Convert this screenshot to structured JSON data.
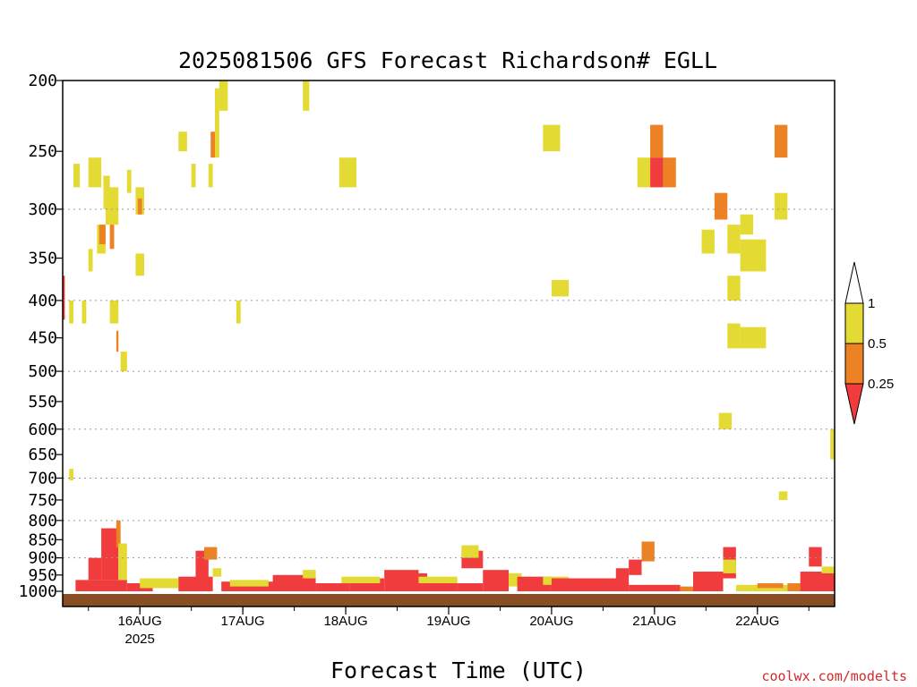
{
  "colors": {
    "lt_025": "#f03c3c",
    "025_05": "#ec8224",
    "05_1": "#e4da34",
    "ground": "#8a4e26",
    "grid": "#9a9a9a",
    "credit": "#d22a2a"
  },
  "chart_data": {
    "type": "heatmap",
    "title": "2025081506 GFS Forecast Richardson# EGLL",
    "xlabel": "Forecast Time (UTC)",
    "ylabel": "",
    "y_scale": "log",
    "y_reversed": true,
    "ylim": [
      1000,
      200
    ],
    "xlim": [
      6,
      186
    ],
    "y_ticks": [
      "200",
      "250",
      "300",
      "350",
      "400",
      "450",
      "500",
      "550",
      "600",
      "650",
      "700",
      "750",
      "800",
      "850",
      "900",
      "950",
      "1000"
    ],
    "y_gridlines": [
      300,
      400,
      500,
      600,
      700,
      800,
      900
    ],
    "x_ticks": [
      {
        "value": 24,
        "label": "16AUG",
        "label2": "2025"
      },
      {
        "value": 48,
        "label": "17AUG",
        "label2": ""
      },
      {
        "value": 72,
        "label": "18AUG",
        "label2": ""
      },
      {
        "value": 96,
        "label": "19AUG",
        "label2": ""
      },
      {
        "value": 120,
        "label": "20AUG",
        "label2": ""
      },
      {
        "value": 144,
        "label": "21AUG",
        "label2": ""
      },
      {
        "value": 168,
        "label": "22AUG",
        "label2": ""
      }
    ],
    "legend": {
      "placement": "right",
      "labels": [
        "1",
        "0.5",
        "0.25"
      ],
      "bins": [
        {
          "range": "0.5-1",
          "color": "#e4da34"
        },
        {
          "range": "0.25-0.5",
          "color": "#ec8224"
        },
        {
          "range": "<0.25",
          "color": "#f03c3c"
        }
      ]
    },
    "cells": [
      [
        7.5,
        8.5,
        680,
        705,
        "05_1"
      ],
      [
        7.5,
        8.5,
        400,
        430,
        "05_1"
      ],
      [
        10.5,
        11.5,
        400,
        430,
        "05_1"
      ],
      [
        12,
        13,
        340,
        365,
        "05_1"
      ],
      [
        8.5,
        10,
        260,
        280,
        "05_1"
      ],
      [
        12,
        15,
        255,
        280,
        "05_1"
      ],
      [
        14,
        16,
        315,
        345,
        "05_1"
      ],
      [
        14.5,
        16,
        315,
        335,
        "025_05"
      ],
      [
        15.5,
        17,
        270,
        300,
        "05_1"
      ],
      [
        16,
        19,
        280,
        315,
        "05_1"
      ],
      [
        17,
        18,
        315,
        340,
        "025_05"
      ],
      [
        17,
        19,
        400,
        430,
        "05_1"
      ],
      [
        18.5,
        19,
        440,
        470,
        "025_05"
      ],
      [
        19.5,
        21,
        470,
        500,
        "05_1"
      ],
      [
        21,
        22,
        265,
        285,
        "05_1"
      ],
      [
        23,
        25,
        280,
        305,
        "05_1"
      ],
      [
        23.5,
        24.5,
        290,
        305,
        "025_05"
      ],
      [
        23,
        25,
        345,
        370,
        "05_1"
      ],
      [
        33,
        35,
        235,
        250,
        "05_1"
      ],
      [
        36,
        37,
        260,
        280,
        "05_1"
      ],
      [
        40,
        41,
        260,
        280,
        "05_1"
      ],
      [
        40.5,
        41.5,
        235,
        255,
        "025_05"
      ],
      [
        41.5,
        42.5,
        205,
        255,
        "05_1"
      ],
      [
        42.5,
        44.5,
        200,
        220,
        "05_1"
      ],
      [
        46.5,
        47.5,
        400,
        430,
        "05_1"
      ],
      [
        62,
        63.5,
        200,
        220,
        "05_1"
      ],
      [
        70.5,
        74.5,
        255,
        280,
        "05_1"
      ],
      [
        118,
        122,
        230,
        250,
        "05_1"
      ],
      [
        120,
        124,
        375,
        395,
        "05_1"
      ],
      [
        140,
        143,
        255,
        280,
        "05_1"
      ],
      [
        143,
        146,
        230,
        255,
        "025_05"
      ],
      [
        143,
        146,
        255,
        280,
        "lt_025"
      ],
      [
        146,
        149,
        255,
        280,
        "025_05"
      ],
      [
        155,
        158,
        320,
        345,
        "05_1"
      ],
      [
        158,
        161,
        285,
        310,
        "025_05"
      ],
      [
        161,
        164,
        315,
        345,
        "05_1"
      ],
      [
        164,
        167,
        305,
        325,
        "05_1"
      ],
      [
        164,
        170,
        330,
        365,
        "05_1"
      ],
      [
        161,
        164,
        370,
        400,
        "05_1"
      ],
      [
        161,
        164,
        430,
        465,
        "05_1"
      ],
      [
        164,
        170,
        435,
        465,
        "05_1"
      ],
      [
        159,
        162,
        570,
        600,
        "05_1"
      ],
      [
        172,
        175,
        230,
        255,
        "025_05"
      ],
      [
        172,
        175,
        285,
        310,
        "05_1"
      ],
      [
        173,
        175,
        730,
        750,
        "05_1"
      ],
      [
        185,
        186,
        600,
        660,
        "05_1"
      ],
      [
        6,
        6.5,
        370,
        425,
        "lt_025"
      ],
      [
        9,
        21,
        965,
        1000,
        "lt_025"
      ],
      [
        12,
        15,
        900,
        965,
        "lt_025"
      ],
      [
        15,
        19,
        820,
        965,
        "lt_025"
      ],
      [
        18.5,
        19.5,
        800,
        870,
        "025_05"
      ],
      [
        19,
        21,
        860,
        965,
        "05_1"
      ],
      [
        21,
        27,
        975,
        1000,
        "lt_025"
      ],
      [
        24,
        33,
        960,
        990,
        "05_1"
      ],
      [
        33,
        41,
        955,
        1000,
        "lt_025"
      ],
      [
        37,
        40,
        880,
        960,
        "lt_025"
      ],
      [
        39,
        42,
        870,
        905,
        "025_05"
      ],
      [
        41,
        43,
        930,
        955,
        "05_1"
      ],
      [
        43,
        56,
        970,
        1000,
        "lt_025"
      ],
      [
        45,
        54,
        965,
        985,
        "05_1"
      ],
      [
        55,
        65,
        950,
        1000,
        "lt_025"
      ],
      [
        62,
        65,
        935,
        960,
        "05_1"
      ],
      [
        65,
        73,
        975,
        1000,
        "lt_025"
      ],
      [
        73,
        81,
        960,
        1000,
        "lt_025"
      ],
      [
        71,
        80,
        955,
        975,
        "05_1"
      ],
      [
        81,
        89,
        935,
        1000,
        "lt_025"
      ],
      [
        86,
        91,
        945,
        980,
        "lt_025"
      ],
      [
        89,
        98,
        960,
        1000,
        "lt_025"
      ],
      [
        89,
        98,
        955,
        975,
        "05_1"
      ],
      [
        99,
        104,
        880,
        930,
        "lt_025"
      ],
      [
        99,
        103,
        865,
        900,
        "05_1"
      ],
      [
        98,
        104,
        975,
        1000,
        "lt_025"
      ],
      [
        104,
        110,
        935,
        1000,
        "lt_025"
      ],
      [
        110,
        113,
        945,
        985,
        "05_1"
      ],
      [
        112,
        120,
        955,
        1000,
        "lt_025"
      ],
      [
        118,
        124,
        955,
        980,
        "05_1"
      ],
      [
        120,
        138,
        960,
        1000,
        "lt_025"
      ],
      [
        135,
        138,
        930,
        960,
        "lt_025"
      ],
      [
        138,
        141,
        905,
        950,
        "lt_025"
      ],
      [
        141,
        144,
        855,
        910,
        "025_05"
      ],
      [
        138,
        150,
        980,
        1000,
        "lt_025"
      ],
      [
        150,
        158,
        985,
        1000,
        "025_05"
      ],
      [
        153,
        160,
        940,
        1000,
        "lt_025"
      ],
      [
        160,
        163,
        870,
        960,
        "lt_025"
      ],
      [
        160,
        163,
        905,
        945,
        "05_1"
      ],
      [
        163,
        175,
        980,
        1000,
        "05_1"
      ],
      [
        168,
        174,
        975,
        990,
        "025_05"
      ],
      [
        175,
        186,
        975,
        1000,
        "025_05"
      ],
      [
        178,
        186,
        940,
        1000,
        "lt_025"
      ],
      [
        180,
        183,
        870,
        925,
        "lt_025"
      ],
      [
        183,
        186,
        925,
        945,
        "05_1"
      ]
    ]
  },
  "credit": "coolwx.com/modelts"
}
